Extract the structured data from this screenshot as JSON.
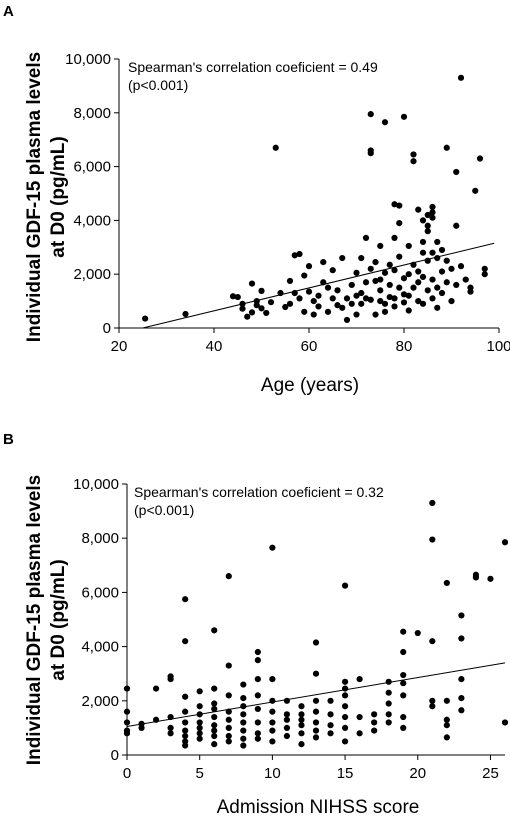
{
  "chart_data": [
    {
      "type": "scatter",
      "panel_label": "A",
      "title": "",
      "xlabel": "Age (years)",
      "ylabel": [
        "Individual GDF-15 plasma levels",
        "at D0 (pg/mL)"
      ],
      "xlim": [
        20,
        100
      ],
      "ylim": [
        0,
        10000
      ],
      "xticks": [
        20,
        40,
        60,
        80,
        100
      ],
      "yticks": [
        0,
        2000,
        4000,
        6000,
        8000,
        10000
      ],
      "xtick_labels": [
        "20",
        "40",
        "60",
        "80",
        "100"
      ],
      "ytick_labels": [
        "0",
        "2,000",
        "4,000",
        "6,000",
        "8,000",
        "10,000"
      ],
      "grid": false,
      "annotation": [
        "Spearman's correlation coeficient = 0.49",
        "(p<0.001)"
      ],
      "trendline": [
        [
          25,
          0
        ],
        [
          99,
          3150
        ]
      ],
      "points": [
        [
          25.5,
          350
        ],
        [
          34,
          520
        ],
        [
          44,
          1180
        ],
        [
          45,
          1150
        ],
        [
          46,
          720
        ],
        [
          46,
          900
        ],
        [
          47,
          420
        ],
        [
          48,
          1650
        ],
        [
          48,
          580
        ],
        [
          49,
          1000
        ],
        [
          49,
          850
        ],
        [
          50,
          1380
        ],
        [
          50,
          730
        ],
        [
          51,
          560
        ],
        [
          52,
          960
        ],
        [
          53,
          6700
        ],
        [
          54,
          1300
        ],
        [
          55,
          780
        ],
        [
          56,
          1750
        ],
        [
          56,
          900
        ],
        [
          57,
          2700
        ],
        [
          57,
          1300
        ],
        [
          58,
          1100
        ],
        [
          58,
          2750
        ],
        [
          59,
          600
        ],
        [
          59,
          1950
        ],
        [
          60,
          2300
        ],
        [
          60,
          1350
        ],
        [
          61,
          500
        ],
        [
          61,
          1000
        ],
        [
          62,
          1200
        ],
        [
          62,
          800
        ],
        [
          63,
          2450
        ],
        [
          63,
          1700
        ],
        [
          64,
          1500
        ],
        [
          64,
          600
        ],
        [
          65,
          1100
        ],
        [
          65,
          2150
        ],
        [
          66,
          850
        ],
        [
          66,
          1400
        ],
        [
          67,
          2600
        ],
        [
          67,
          750
        ],
        [
          68,
          1100
        ],
        [
          68,
          300
        ],
        [
          69,
          900
        ],
        [
          69,
          1600
        ],
        [
          70,
          1200
        ],
        [
          70,
          2050
        ],
        [
          70,
          500
        ],
        [
          71,
          1300
        ],
        [
          71,
          900
        ],
        [
          71,
          2600
        ],
        [
          72,
          1700
        ],
        [
          72,
          3350
        ],
        [
          72,
          1100
        ],
        [
          73,
          7950
        ],
        [
          73,
          6600
        ],
        [
          73,
          6500
        ],
        [
          73,
          2200
        ],
        [
          73,
          1050
        ],
        [
          74,
          1750
        ],
        [
          74,
          500
        ],
        [
          74,
          2450
        ],
        [
          75,
          1000
        ],
        [
          75,
          3050
        ],
        [
          75,
          1800
        ],
        [
          75,
          1400
        ],
        [
          76,
          900
        ],
        [
          76,
          7650
        ],
        [
          76,
          600
        ],
        [
          76,
          2050
        ],
        [
          77,
          2350
        ],
        [
          77,
          1150
        ],
        [
          77,
          1600
        ],
        [
          78,
          3350
        ],
        [
          78,
          4600
        ],
        [
          78,
          2150
        ],
        [
          78,
          1100
        ],
        [
          78,
          800
        ],
        [
          79,
          1500
        ],
        [
          79,
          2650
        ],
        [
          79,
          3900
        ],
        [
          79,
          4550
        ],
        [
          80,
          7850
        ],
        [
          80,
          1850
        ],
        [
          80,
          1250
        ],
        [
          80,
          950
        ],
        [
          81,
          3050
        ],
        [
          81,
          2000
        ],
        [
          81,
          1200
        ],
        [
          81,
          650
        ],
        [
          82,
          6200
        ],
        [
          82,
          6450
        ],
        [
          82,
          2350
        ],
        [
          82,
          1500
        ],
        [
          83,
          2100
        ],
        [
          83,
          1700
        ],
        [
          83,
          4400
        ],
        [
          83,
          1000
        ],
        [
          84,
          3200
        ],
        [
          84,
          2800
        ],
        [
          84,
          1900
        ],
        [
          84,
          4000
        ],
        [
          84,
          900
        ],
        [
          85,
          3600
        ],
        [
          85,
          2500
        ],
        [
          85,
          1400
        ],
        [
          85,
          4200
        ],
        [
          85,
          3800
        ],
        [
          86,
          4500
        ],
        [
          86,
          2800
        ],
        [
          86,
          1800
        ],
        [
          86,
          1100
        ],
        [
          86,
          4300
        ],
        [
          86,
          4100
        ],
        [
          87,
          2600
        ],
        [
          87,
          1500
        ],
        [
          87,
          3200
        ],
        [
          87,
          750
        ],
        [
          88,
          2100
        ],
        [
          88,
          2900
        ],
        [
          88,
          1300
        ],
        [
          89,
          6700
        ],
        [
          89,
          1700
        ],
        [
          89,
          2500
        ],
        [
          90,
          1000
        ],
        [
          90,
          2200
        ],
        [
          91,
          5800
        ],
        [
          91,
          1600
        ],
        [
          91,
          3800
        ],
        [
          92,
          9300
        ],
        [
          92,
          2300
        ],
        [
          93,
          1800
        ],
        [
          94,
          1500
        ],
        [
          94,
          1350
        ],
        [
          95,
          5100
        ],
        [
          96,
          6300
        ],
        [
          97,
          2000
        ],
        [
          97,
          2200
        ]
      ]
    },
    {
      "type": "scatter",
      "panel_label": "B",
      "title": "",
      "xlabel": "Admission NIHSS score",
      "ylabel": [
        "Individual GDF-15 plasma levels",
        "at D0 (pg/mL)"
      ],
      "xlim": [
        0,
        26
      ],
      "ylim": [
        0,
        10000
      ],
      "xticks": [
        0,
        5,
        10,
        15,
        20,
        25
      ],
      "yticks": [
        0,
        2000,
        4000,
        6000,
        8000,
        10000
      ],
      "xtick_labels": [
        "0",
        "5",
        "10",
        "15",
        "20",
        "25"
      ],
      "ytick_labels": [
        "0",
        "2,000",
        "4,000",
        "6,000",
        "8,000",
        "10,000"
      ],
      "grid": false,
      "annotation": [
        "Spearman's correlation coeficient = 0.32",
        "(p<0.001)"
      ],
      "trendline": [
        [
          0,
          1050
        ],
        [
          26,
          3400
        ]
      ],
      "points": [
        [
          0,
          2450
        ],
        [
          0,
          1600
        ],
        [
          0,
          1200
        ],
        [
          0,
          900
        ],
        [
          0,
          800
        ],
        [
          1,
          1150
        ],
        [
          1,
          1000
        ],
        [
          2,
          2450
        ],
        [
          2,
          1300
        ],
        [
          3,
          2900
        ],
        [
          3,
          2800
        ],
        [
          3,
          1400
        ],
        [
          3,
          1000
        ],
        [
          3,
          800
        ],
        [
          4,
          5750
        ],
        [
          4,
          4200
        ],
        [
          4,
          2150
        ],
        [
          4,
          1600
        ],
        [
          4,
          1200
        ],
        [
          4,
          900
        ],
        [
          4,
          700
        ],
        [
          4,
          500
        ],
        [
          4,
          350
        ],
        [
          5,
          2350
        ],
        [
          5,
          1800
        ],
        [
          5,
          1500
        ],
        [
          5,
          1200
        ],
        [
          5,
          1000
        ],
        [
          5,
          800
        ],
        [
          5,
          600
        ],
        [
          6,
          4600
        ],
        [
          6,
          2450
        ],
        [
          6,
          1900
        ],
        [
          6,
          1700
        ],
        [
          6,
          1400
        ],
        [
          6,
          1100
        ],
        [
          6,
          900
        ],
        [
          6,
          700
        ],
        [
          6,
          400
        ],
        [
          7,
          6600
        ],
        [
          7,
          3300
        ],
        [
          7,
          2200
        ],
        [
          7,
          1600
        ],
        [
          7,
          1300
        ],
        [
          7,
          1000
        ],
        [
          7,
          700
        ],
        [
          7,
          500
        ],
        [
          8,
          2600
        ],
        [
          8,
          2100
        ],
        [
          8,
          1800
        ],
        [
          8,
          1500
        ],
        [
          8,
          1200
        ],
        [
          8,
          900
        ],
        [
          8,
          600
        ],
        [
          8,
          350
        ],
        [
          9,
          3800
        ],
        [
          9,
          3500
        ],
        [
          9,
          2800
        ],
        [
          9,
          2200
        ],
        [
          9,
          1700
        ],
        [
          9,
          1200
        ],
        [
          9,
          800
        ],
        [
          9,
          600
        ],
        [
          10,
          7650
        ],
        [
          10,
          2800
        ],
        [
          10,
          2000
        ],
        [
          10,
          1600
        ],
        [
          10,
          1200
        ],
        [
          10,
          900
        ],
        [
          10,
          500
        ],
        [
          11,
          2000
        ],
        [
          11,
          1500
        ],
        [
          11,
          1300
        ],
        [
          11,
          1000
        ],
        [
          11,
          700
        ],
        [
          12,
          1800
        ],
        [
          12,
          1500
        ],
        [
          12,
          1300
        ],
        [
          12,
          1100
        ],
        [
          12,
          800
        ],
        [
          12,
          400
        ],
        [
          13,
          4150
        ],
        [
          13,
          3000
        ],
        [
          13,
          2000
        ],
        [
          13,
          1600
        ],
        [
          13,
          1200
        ],
        [
          13,
          900
        ],
        [
          13,
          650
        ],
        [
          14,
          2000
        ],
        [
          14,
          1500
        ],
        [
          14,
          1100
        ],
        [
          14,
          800
        ],
        [
          15,
          6250
        ],
        [
          15,
          2700
        ],
        [
          15,
          2450
        ],
        [
          15,
          2200
        ],
        [
          15,
          1800
        ],
        [
          15,
          1400
        ],
        [
          15,
          1000
        ],
        [
          15,
          500
        ],
        [
          16,
          2800
        ],
        [
          16,
          1400
        ],
        [
          16,
          800
        ],
        [
          17,
          1500
        ],
        [
          17,
          1200
        ],
        [
          17,
          900
        ],
        [
          18,
          2700
        ],
        [
          18,
          2300
        ],
        [
          18,
          1900
        ],
        [
          18,
          1500
        ],
        [
          18,
          1200
        ],
        [
          19,
          4550
        ],
        [
          19,
          3800
        ],
        [
          19,
          2950
        ],
        [
          19,
          2650
        ],
        [
          19,
          2200
        ],
        [
          19,
          1400
        ],
        [
          19,
          1000
        ],
        [
          20,
          4500
        ],
        [
          21,
          9300
        ],
        [
          21,
          7950
        ],
        [
          21,
          4200
        ],
        [
          21,
          2000
        ],
        [
          21,
          1800
        ],
        [
          22,
          6350
        ],
        [
          22,
          2000
        ],
        [
          22,
          1300
        ],
        [
          22,
          1100
        ],
        [
          22,
          650
        ],
        [
          23,
          5150
        ],
        [
          23,
          4300
        ],
        [
          23,
          2800
        ],
        [
          23,
          2100
        ],
        [
          23,
          1650
        ],
        [
          24,
          6650
        ],
        [
          24,
          6550
        ],
        [
          25,
          6500
        ],
        [
          26,
          7850
        ],
        [
          26,
          1200
        ]
      ]
    }
  ]
}
